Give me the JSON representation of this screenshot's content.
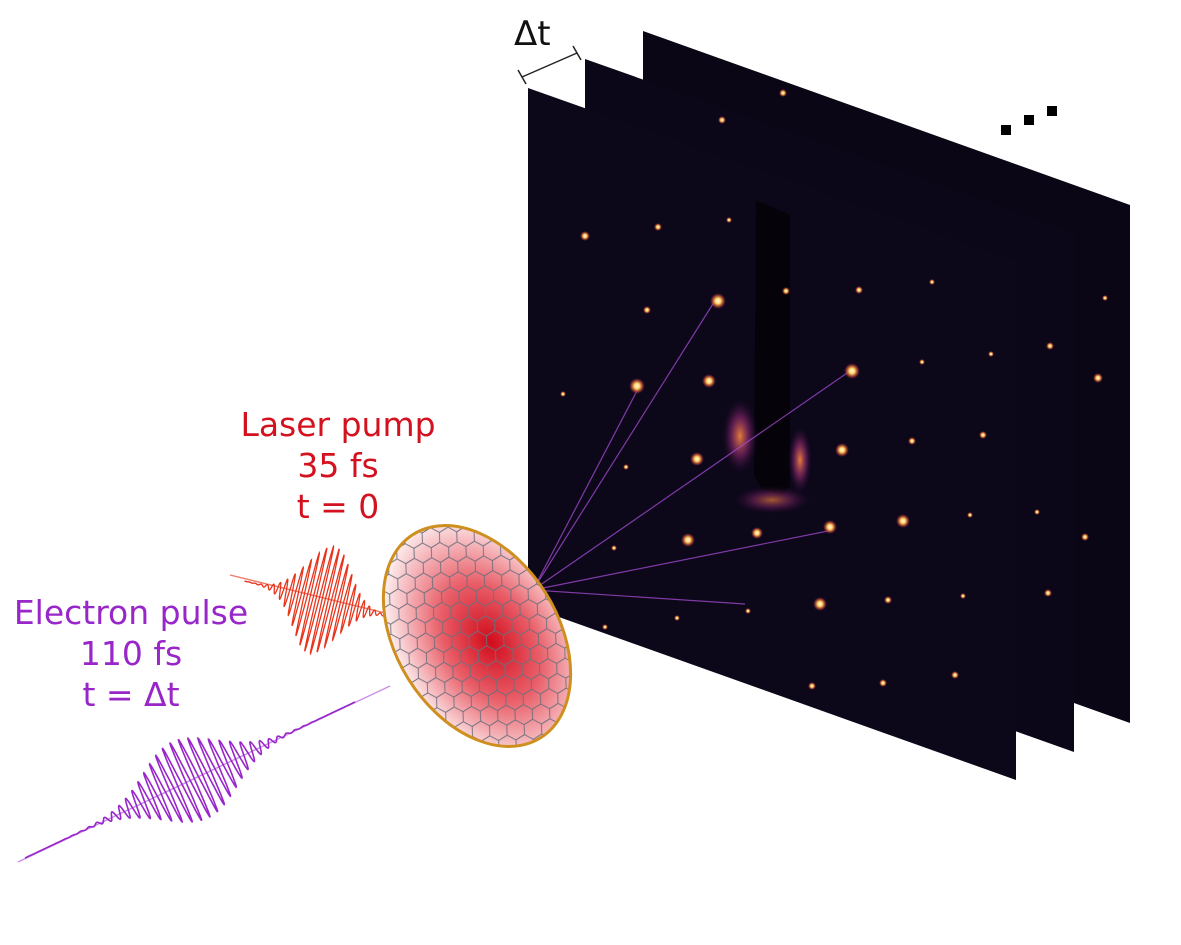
{
  "labels": {
    "delta_t": "Δt",
    "ellipsis": "...",
    "laser": {
      "name": "Laser pump",
      "duration": "35 fs",
      "time": "t = 0"
    },
    "electron": {
      "name": "Electron pulse",
      "duration": "110 fs",
      "time": "t = Δt"
    }
  },
  "colors": {
    "laser": "#e8341c",
    "laser_text": "#d4121f",
    "electron": "#9826c8",
    "sample_rim": "#cf8f1e",
    "detector_bg": "#0a0616",
    "spot": "#ffe9a8"
  },
  "detector": {
    "frame_count": 3
  }
}
